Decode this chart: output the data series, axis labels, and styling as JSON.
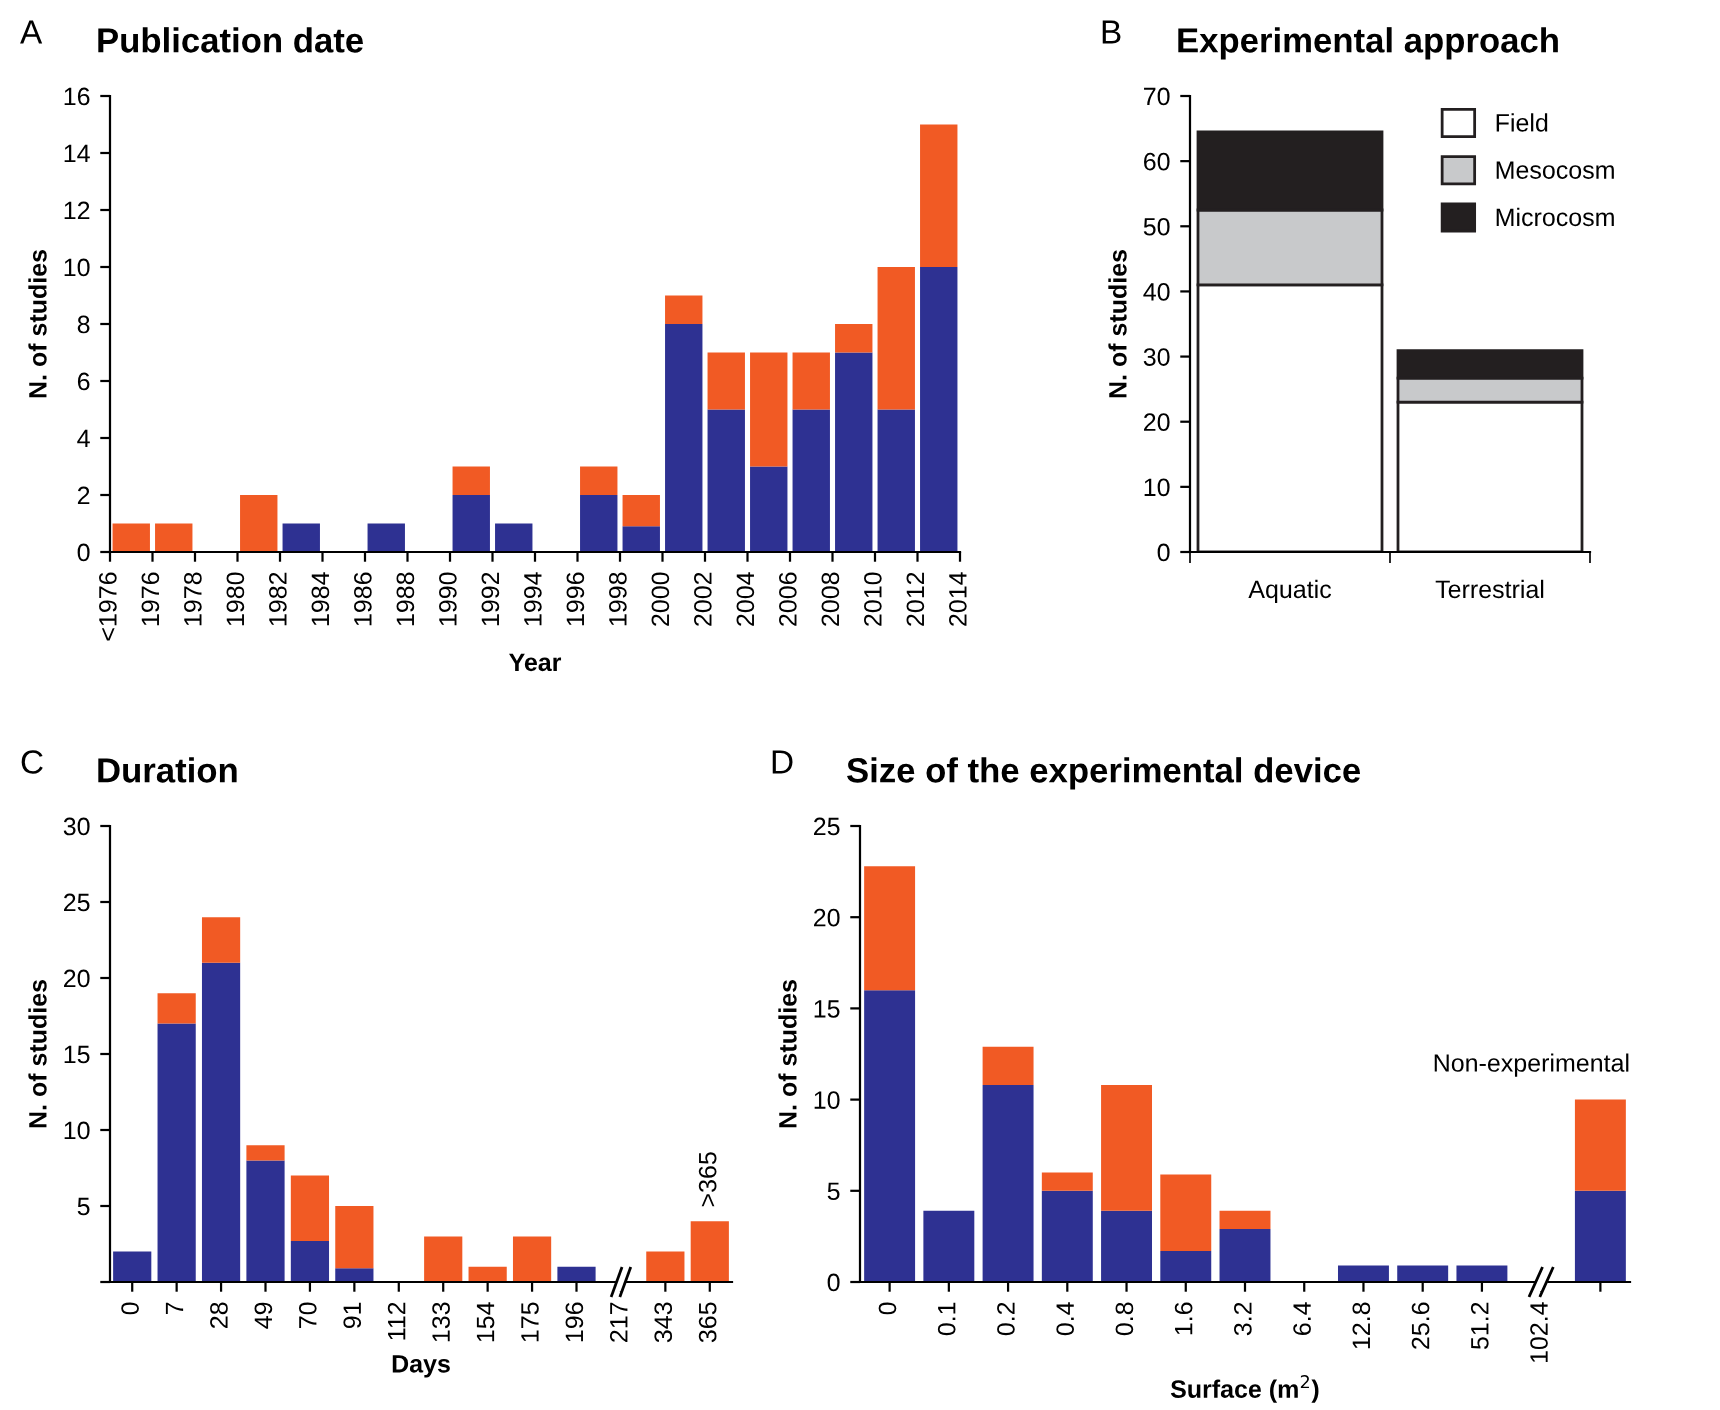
{
  "chart_data": [
    {
      "type": "bar",
      "title": "Publication date",
      "xlabel": "Year",
      "ylabel": "N. of studies",
      "annotations": [
        "A"
      ],
      "stacked": true,
      "x": [
        1975,
        1977,
        1979,
        1981,
        1983,
        1985,
        1987,
        1989,
        1991,
        1993,
        1995,
        1997,
        1999,
        2001,
        2003,
        2005,
        2007,
        2009,
        2011,
        2013
      ],
      "series": [
        {
          "color": "#2e3192",
          "values": [
            0,
            0,
            0,
            0,
            1,
            0,
            1,
            0,
            2,
            1,
            0,
            2,
            0.9,
            8,
            5,
            3,
            5,
            7,
            5,
            10
          ]
        },
        {
          "color": "#f15a24",
          "values": [
            1,
            1,
            0,
            2,
            0,
            0,
            0,
            0,
            1,
            0,
            0,
            1,
            1.1,
            1,
            2,
            4,
            2,
            1,
            5,
            5
          ]
        }
      ],
      "xlim": [
        1974,
        2014
      ],
      "xticks": [
        {
          "value": 1974,
          "label": "<1976"
        },
        1976,
        1978,
        1980,
        1982,
        1984,
        1986,
        1988,
        1990,
        1992,
        1994,
        1996,
        1998,
        2000,
        2002,
        2004,
        2006,
        2008,
        2010,
        2012,
        2014
      ],
      "ylim": [
        0,
        16
      ],
      "yticks": [
        0,
        2,
        4,
        6,
        8,
        10,
        12,
        14,
        16
      ],
      "grid": false,
      "legend": false
    },
    {
      "type": "bar",
      "title": "Experimental approach",
      "ylabel": "N. of studies",
      "annotations": [
        "B"
      ],
      "stacked": true,
      "categories": [
        "Aquatic",
        "Terrestrial"
      ],
      "series": [
        {
          "name": "Field",
          "color": "#ffffff",
          "values": [
            41,
            23
          ]
        },
        {
          "name": "Mesocosm",
          "color": "#c8c9cb",
          "values": [
            11.5,
            3.7
          ]
        },
        {
          "name": "Microcosm",
          "color": "#231f20",
          "values": [
            12,
            4.2
          ]
        }
      ],
      "ylim": [
        0,
        70
      ],
      "yticks": [
        0,
        10,
        20,
        30,
        40,
        50,
        60,
        70
      ],
      "grid": false,
      "legend": "top right"
    },
    {
      "type": "bar",
      "title": "Duration",
      "xlabel": "Days",
      "ylabel": "N. of studies",
      "stacked": true,
      "annotations": [
        "C",
        {
          "text": ">365",
          "x": "365",
          "y": 4
        }
      ],
      "categories": [
        "0",
        "7",
        "28",
        "49",
        "70",
        "91",
        "112",
        "133",
        "154",
        "175",
        "196",
        "217",
        "343",
        "365"
      ],
      "series": [
        {
          "color": "#2e3192",
          "values": [
            2,
            17,
            21,
            8,
            2.7,
            0.9,
            0,
            0,
            0,
            0,
            1,
            0,
            0,
            0
          ]
        },
        {
          "color": "#f15a24",
          "values": [
            0,
            2,
            3,
            1,
            4.3,
            4.1,
            0,
            3,
            1,
            3,
            0,
            0,
            2,
            4
          ]
        }
      ],
      "ylim": [
        0,
        30
      ],
      "yticks": [
        {
          "value": 0,
          "label": null
        },
        5,
        10,
        15,
        20,
        25,
        30
      ],
      "grid": false,
      "legend": false
    },
    {
      "type": "bar",
      "title": "Size of the experimental device",
      "xlabel": "Surface (m$^{2}$)",
      "ylabel": "N. of studies",
      "stacked": true,
      "annotations": [
        "D",
        "Non-experimental"
      ],
      "categories": [
        "0",
        "0.1",
        "0.2",
        "0.4",
        "0.8",
        "1.6",
        "3.2",
        "6.4",
        "12.8",
        "25.6",
        "51.2",
        "102.4",
        null
      ],
      "series": [
        {
          "color": "#2e3192",
          "values": [
            16,
            3.9,
            10.8,
            5,
            3.9,
            1.7,
            2.9,
            0,
            0.9,
            0.9,
            0.9,
            0,
            5
          ]
        },
        {
          "color": "#f15a24",
          "values": [
            6.8,
            0,
            2.1,
            1,
            6.9,
            4.2,
            1,
            0,
            0,
            0,
            0,
            0,
            5
          ]
        }
      ],
      "ylim": [
        0,
        25
      ],
      "yticks": [
        0,
        5,
        10,
        15,
        20,
        25
      ],
      "grid": false,
      "legend": false
    }
  ]
}
